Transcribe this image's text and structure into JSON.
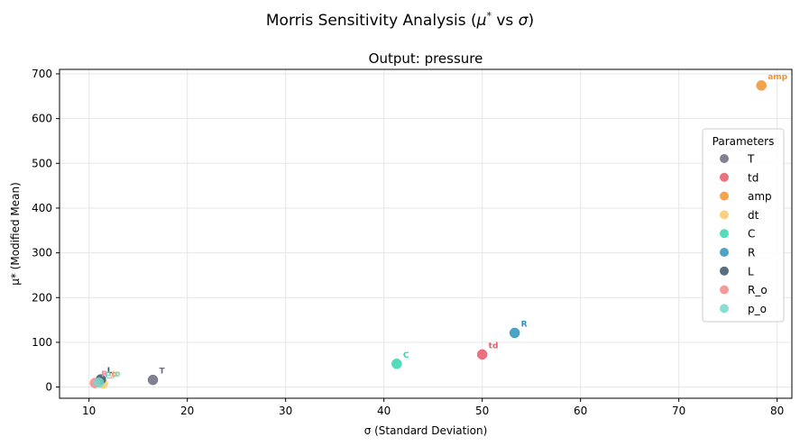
{
  "figure": {
    "suptitle_prefix": "Morris Sensitivity Analysis (",
    "suptitle_mu": "μ",
    "suptitle_star": "*",
    "suptitle_vs": " vs ",
    "suptitle_sigma": "σ",
    "suptitle_close": ")"
  },
  "chart_data": {
    "type": "scatter",
    "title": "Output: pressure",
    "xlabel": "σ (Standard Deviation)",
    "ylabel": "μ* (Modified Mean)",
    "xlim": [
      7,
      81.5
    ],
    "ylim": [
      -25,
      710
    ],
    "xticks": [
      10,
      20,
      30,
      40,
      50,
      60,
      70,
      80
    ],
    "yticks": [
      0,
      100,
      200,
      300,
      400,
      500,
      600,
      700
    ],
    "grid": true,
    "legend": {
      "title": "Parameters",
      "placement": "center-right"
    },
    "series": [
      {
        "name": "T",
        "x": 16.5,
        "y": 16,
        "color": "#6b6b80"
      },
      {
        "name": "td",
        "x": 50.0,
        "y": 73,
        "color": "#e85a6a"
      },
      {
        "name": "amp",
        "x": 78.4,
        "y": 674,
        "color": "#f2932d"
      },
      {
        "name": "dt",
        "x": 11.4,
        "y": 8,
        "color": "#f8c96a"
      },
      {
        "name": "C",
        "x": 41.3,
        "y": 52,
        "color": "#35d5b0"
      },
      {
        "name": "R",
        "x": 53.3,
        "y": 121,
        "color": "#2e93b8"
      },
      {
        "name": "L",
        "x": 11.2,
        "y": 17,
        "color": "#3a5569"
      },
      {
        "name": "R_o",
        "x": 10.6,
        "y": 9,
        "color": "#f5898a"
      },
      {
        "name": "p_o",
        "x": 11.0,
        "y": 10,
        "color": "#74d8cc"
      }
    ]
  }
}
